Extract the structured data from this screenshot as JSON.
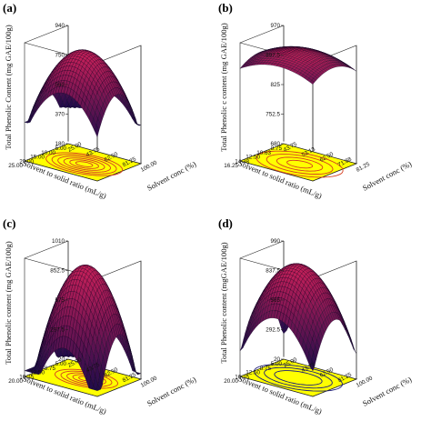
{
  "figure": {
    "panels": [
      {
        "label": "(a)",
        "zlabel": "Total Phenolic Content (mg GAE/100g)",
        "xlabel": "Solvent conc (%)",
        "ylabel": "Solvent to solid ratio (mL/g)",
        "zticks": [
          "180",
          "370",
          "560",
          "750",
          "940"
        ],
        "xticks": [
          "25.00",
          "43.75",
          "62.50",
          "81.25",
          "100.00"
        ],
        "yticks": [
          "5.00",
          "10.00",
          "15.00",
          "20.00",
          "25.00"
        ]
      },
      {
        "label": "(b)",
        "zlabel": "Total Phenolic c content (mg GAE/100g)",
        "xlabel": "Solvent conc (%)",
        "ylabel": "Solvent to solid ratio (mL/g)",
        "zticks": [
          "680",
          "752.5",
          "825",
          "897.5",
          "970"
        ],
        "xticks": [
          "43.75",
          "53.13",
          "62.50",
          "71.88",
          "81.25"
        ],
        "yticks": [
          "8.75",
          "10.63",
          "12.50",
          "14.38",
          "16.25"
        ]
      },
      {
        "label": "(c)",
        "zlabel": "Total Phenolic content (mg GAE/100g)",
        "xlabel": "Solvent conc (%)",
        "ylabel": "Solvent to solid ratio (mL/g)",
        "zticks": [
          "20",
          "297.5",
          "575",
          "852.5",
          "1010"
        ],
        "xticks": [
          "25.00",
          "43.75",
          "62.50",
          "81.25",
          "100.00"
        ],
        "yticks": [
          "5.00",
          "8.75",
          "12.50",
          "16.25",
          "20.00"
        ]
      },
      {
        "label": "(d)",
        "zlabel": "Total Phenolic content (mgGAE/100g)",
        "xlabel": "Solvent conc (%)",
        "ylabel": "Solvent to solid ratio (mL/g)",
        "zticks": [
          "20",
          "292.5",
          "565",
          "837.5",
          "990"
        ],
        "xticks": [
          "25.00",
          "43.75",
          "62.50",
          "81.25",
          "100.00"
        ],
        "yticks": [
          "5.00",
          "8.75",
          "12.50",
          "16.25",
          "20.00"
        ]
      }
    ]
  },
  "chart_data": [
    {
      "type": "surface",
      "panel": "(a)",
      "xlabel": "Solvent conc (%)",
      "ylabel": "Solvent to solid ratio (mL/g)",
      "zlabel": "Total Phenolic Content (mg GAE/100g)",
      "xlim": [
        25,
        100
      ],
      "ylim": [
        5,
        25
      ],
      "zlim": [
        180,
        940
      ],
      "optimum": {
        "x": 62.5,
        "y": 15,
        "z": 940
      },
      "surface_colors": [
        "#1a0a4a",
        "#c8205a"
      ],
      "contour_projection": {
        "fill": "#ffff00",
        "line": "#d64020",
        "levels": 6
      }
    },
    {
      "type": "surface",
      "panel": "(b)",
      "xlabel": "Solvent conc (%)",
      "ylabel": "Solvent to solid ratio (mL/g)",
      "zlabel": "Total Phenolic c content (mg GAE/100g)",
      "xlim": [
        43.75,
        81.25
      ],
      "ylim": [
        8.75,
        16.25
      ],
      "zlim": [
        680,
        970
      ],
      "optimum": {
        "x": 62.5,
        "y": 12.5,
        "z": 970
      },
      "surface_colors": [
        "#1a0a4a",
        "#c8205a"
      ],
      "contour_projection": {
        "fill": "#ffff00",
        "line": "#d64020",
        "levels": 4
      }
    },
    {
      "type": "surface",
      "panel": "(c)",
      "xlabel": "Solvent conc (%)",
      "ylabel": "Solvent to solid ratio (mL/g)",
      "zlabel": "Total Phenolic content (mg GAE/100g)",
      "xlim": [
        25,
        100
      ],
      "ylim": [
        5,
        20
      ],
      "zlim": [
        20,
        1010
      ],
      "optimum": {
        "x": 62.5,
        "y": 12.5,
        "z": 1010
      },
      "surface_colors": [
        "#1a0a4a",
        "#c8205a"
      ],
      "contour_projection": {
        "fill": "#ffff00",
        "line": "#d64020",
        "levels": 5
      }
    },
    {
      "type": "surface",
      "panel": "(d)",
      "xlabel": "Solvent conc (%)",
      "ylabel": "Solvent to solid ratio (mL/g)",
      "zlabel": "Total Phenolic content (mgGAE/100g)",
      "xlim": [
        25,
        100
      ],
      "ylim": [
        5,
        20
      ],
      "zlim": [
        20,
        990
      ],
      "optimum": {
        "x": 62.5,
        "y": 12.5,
        "z": 990
      },
      "surface_colors": [
        "#1a0a4a",
        "#c8205a"
      ],
      "contour_projection": {
        "fill": "#ffff00",
        "line": "#1e1e78",
        "levels": 3
      }
    }
  ]
}
